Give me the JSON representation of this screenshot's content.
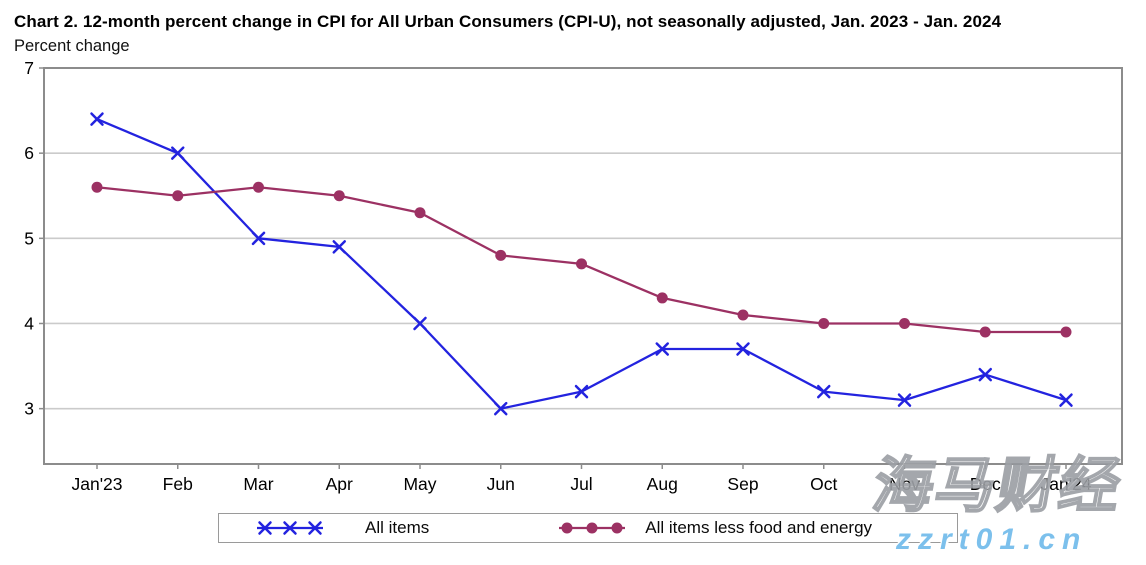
{
  "title": "Chart 2. 12-month percent change in CPI for All Urban Consumers (CPI-U), not seasonally adjusted, Jan. 2023 - Jan. 2024",
  "y_axis_unit": "Percent change",
  "chart_data": {
    "type": "line",
    "categories": [
      "Jan'23",
      "Feb",
      "Mar",
      "Apr",
      "May",
      "Jun",
      "Jul",
      "Aug",
      "Sep",
      "Oct",
      "Nov",
      "Dec",
      "Jan'24"
    ],
    "series": [
      {
        "name": "All items",
        "marker": "x",
        "color": "#2323DF",
        "values": [
          6.4,
          6.0,
          5.0,
          4.9,
          4.0,
          3.0,
          3.2,
          3.7,
          3.7,
          3.2,
          3.1,
          3.4,
          3.1
        ]
      },
      {
        "name": "All items less food and energy",
        "marker": "circle",
        "color": "#9C3163",
        "values": [
          5.6,
          5.5,
          5.6,
          5.5,
          5.3,
          4.8,
          4.7,
          4.3,
          4.1,
          4.0,
          4.0,
          3.9,
          3.9
        ]
      }
    ],
    "title": "Chart 2. 12-month percent change in CPI for All Urban Consumers (CPI-U), not seasonally adjusted, Jan. 2023 - Jan. 2024",
    "xlabel": "",
    "ylabel": "Percent change",
    "yticks": [
      3,
      4,
      5,
      6,
      7
    ],
    "ylim": [
      2.35,
      7
    ],
    "grid": true,
    "legend_position": "bottom",
    "colors": {
      "gridline": "#CBCBCB",
      "plot_border": "#8C8C8C",
      "tick": "#8C8C8C",
      "text": "#000000"
    }
  },
  "watermark": {
    "line1": "海马财经",
    "line2": "zzrt01.cn",
    "color": "#7CC0EC"
  }
}
